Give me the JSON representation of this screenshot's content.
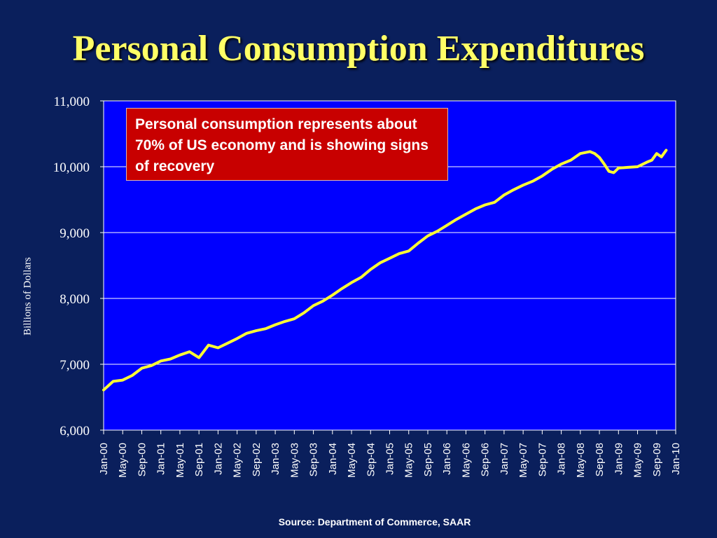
{
  "slide": {
    "title": "Personal Consumption Expenditures",
    "callout": "Personal consumption represents about 70% of US economy and is showing signs of recovery",
    "source": "Source:  Department of Commerce, SAAR"
  },
  "colors": {
    "background": "#0a1f5c",
    "plot": "#0000ff",
    "line": "#ffff33",
    "title": "#ffff66",
    "callout": "#c80000"
  },
  "chart_data": {
    "type": "line",
    "title": "Personal Consumption Expenditures",
    "xlabel": "",
    "ylabel": "Billions of Dollars",
    "ylim": [
      6000,
      11000
    ],
    "yticks": [
      6000,
      7000,
      8000,
      9000,
      10000,
      11000
    ],
    "ytick_labels": [
      "6,000",
      "7,000",
      "8,000",
      "9,000",
      "10,000",
      "11,000"
    ],
    "grid": true,
    "xlim": [
      "Jan-00",
      "Jan-10"
    ],
    "xtick_labels": [
      "Jan-00",
      "May-00",
      "Sep-00",
      "Jan-01",
      "May-01",
      "Sep-01",
      "Jan-02",
      "May-02",
      "Sep-02",
      "Jan-03",
      "May-03",
      "Sep-03",
      "Jan-04",
      "May-04",
      "Sep-04",
      "Jan-05",
      "May-05",
      "Sep-05",
      "Jan-06",
      "May-06",
      "Sep-06",
      "Jan-07",
      "May-07",
      "Sep-07",
      "Jan-08",
      "May-08",
      "Sep-08",
      "Jan-09",
      "May-09",
      "Sep-09",
      "Jan-10"
    ],
    "series": [
      {
        "x": [
          "Jan-00",
          "Mar-00",
          "May-00",
          "Jul-00",
          "Sep-00",
          "Nov-00",
          "Jan-01",
          "Mar-01",
          "May-01",
          "Jul-01",
          "Sep-01",
          "Nov-01",
          "Jan-02",
          "Mar-02",
          "May-02",
          "Jul-02",
          "Sep-02",
          "Nov-02",
          "Jan-03",
          "Mar-03",
          "May-03",
          "Jul-03",
          "Sep-03",
          "Nov-03",
          "Jan-04",
          "Mar-04",
          "May-04",
          "Jul-04",
          "Sep-04",
          "Nov-04",
          "Jan-05",
          "Mar-05",
          "May-05",
          "Jul-05",
          "Sep-05",
          "Nov-05",
          "Jan-06",
          "Mar-06",
          "May-06",
          "Jul-06",
          "Sep-06",
          "Nov-06",
          "Jan-07",
          "Mar-07",
          "May-07",
          "Jul-07",
          "Sep-07",
          "Nov-07",
          "Jan-08",
          "Mar-08",
          "May-08",
          "Jul-08",
          "Aug-08",
          "Sep-08",
          "Oct-08",
          "Nov-08",
          "Dec-08",
          "Jan-09",
          "Mar-09",
          "May-09",
          "Jul-09",
          "Aug-09",
          "Sep-09",
          "Oct-09",
          "Nov-09"
        ],
        "values": [
          6610,
          6740,
          6760,
          6830,
          6940,
          6980,
          7050,
          7080,
          7140,
          7190,
          7100,
          7290,
          7250,
          7320,
          7390,
          7470,
          7510,
          7540,
          7600,
          7650,
          7690,
          7780,
          7890,
          7960,
          8050,
          8150,
          8240,
          8320,
          8440,
          8540,
          8610,
          8680,
          8720,
          8840,
          8950,
          9020,
          9110,
          9200,
          9280,
          9360,
          9420,
          9460,
          9570,
          9650,
          9720,
          9780,
          9860,
          9960,
          10040,
          10100,
          10200,
          10230,
          10200,
          10140,
          10040,
          9930,
          9910,
          9980,
          9990,
          10000,
          10070,
          10100,
          10200,
          10150,
          10250
        ]
      }
    ]
  }
}
